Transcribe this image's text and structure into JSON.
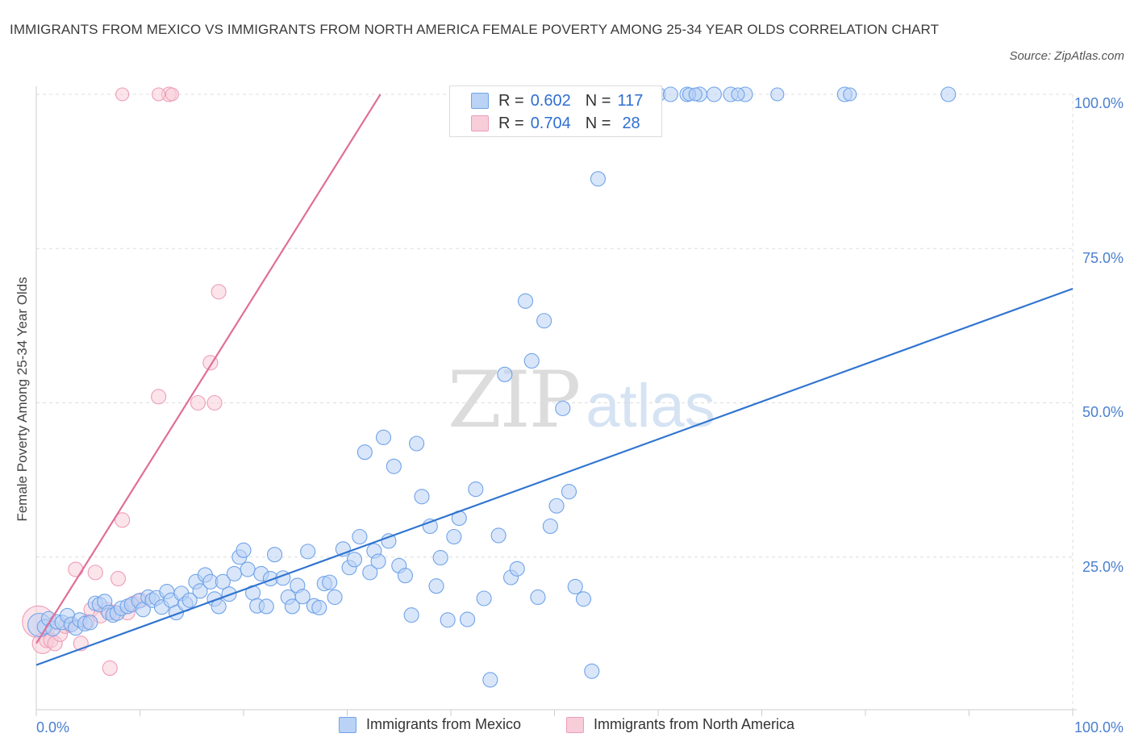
{
  "title": "IMMIGRANTS FROM MEXICO VS IMMIGRANTS FROM NORTH AMERICA FEMALE POVERTY AMONG 25-34 YEAR OLDS CORRELATION CHART",
  "source": "Source: ZipAtlas.com",
  "watermark": {
    "zip": "ZIP",
    "atlas": "atlas"
  },
  "chart_data": {
    "type": "scatter",
    "ylabel": "Female Poverty Among 25-34 Year Olds",
    "xlim": [
      0,
      100
    ],
    "ylim": [
      0,
      100
    ],
    "x_tick_labels": [
      "0.0%",
      "100.0%"
    ],
    "y_tick_labels": [
      "25.0%",
      "50.0%",
      "75.0%",
      "100.0%"
    ],
    "y_ticks": [
      25,
      50,
      75,
      100
    ],
    "grid": true,
    "legend_position": "top-center",
    "series": [
      {
        "name": "Immigrants from Mexico",
        "color": "#6fa3e8",
        "fill": "#b9d2f5",
        "line_color": "#2f74d0",
        "R": "0.602",
        "N": "117",
        "trend": {
          "x": [
            0,
            100
          ],
          "y": [
            7.5,
            68.5
          ]
        },
        "x": [
          0.3,
          0.8,
          1.2,
          1.6,
          2.0,
          2.5,
          3.0,
          3.4,
          3.8,
          4.2,
          4.7,
          5.2,
          5.7,
          6.1,
          6.6,
          7.0,
          7.4,
          7.8,
          8.2,
          8.8,
          9.2,
          9.9,
          10.3,
          10.8,
          11.2,
          11.6,
          12.1,
          12.6,
          13.0,
          13.5,
          14.0,
          14.4,
          14.8,
          15.4,
          15.8,
          16.3,
          16.8,
          17.2,
          17.6,
          18.0,
          18.6,
          19.1,
          19.6,
          20.0,
          20.4,
          20.9,
          21.3,
          21.7,
          22.2,
          22.6,
          23.0,
          23.8,
          24.3,
          24.7,
          25.2,
          25.7,
          26.2,
          26.8,
          27.3,
          27.8,
          28.3,
          28.8,
          29.6,
          30.2,
          30.7,
          31.2,
          31.7,
          32.2,
          32.6,
          33.0,
          33.5,
          34.0,
          34.5,
          35.0,
          35.6,
          36.2,
          36.7,
          37.2,
          38.0,
          38.6,
          39.0,
          39.7,
          40.3,
          40.8,
          41.6,
          42.4,
          43.2,
          43.8,
          44.6,
          45.2,
          45.8,
          46.4,
          47.2,
          47.8,
          48.4,
          49.0,
          49.6,
          50.2,
          50.8,
          51.4,
          52.0,
          52.8,
          53.6,
          54.2,
          55.2,
          56.4,
          57.6,
          58.6,
          60.0,
          61.2,
          62.8,
          64.0,
          65.4,
          67.0,
          68.4,
          78.0,
          88.0
        ],
        "y": [
          14.0,
          13.7,
          15.0,
          13.4,
          14.5,
          14.4,
          15.5,
          14.1,
          13.5,
          14.8,
          14.2,
          14.4,
          17.5,
          17.3,
          17.8,
          16.0,
          15.6,
          15.9,
          16.7,
          17.0,
          17.3,
          17.9,
          16.5,
          18.5,
          18.0,
          18.4,
          16.9,
          19.4,
          18.0,
          16.0,
          19.1,
          17.4,
          18.0,
          21.0,
          19.5,
          22.1,
          21.0,
          18.2,
          17.0,
          21.0,
          19.0,
          22.3,
          25.0,
          26.1,
          23.0,
          19.2,
          17.1,
          22.3,
          17.0,
          21.5,
          25.4,
          21.6,
          18.5,
          17.0,
          20.4,
          18.6,
          25.9,
          17.1,
          16.8,
          20.7,
          20.9,
          18.5,
          26.3,
          23.3,
          24.6,
          28.3,
          42.0,
          22.5,
          26.0,
          24.3,
          44.4,
          27.6,
          39.7,
          23.6,
          22.0,
          15.6,
          43.4,
          34.8,
          30.0,
          20.3,
          24.9,
          14.8,
          28.3,
          31.3,
          14.9,
          36.0,
          18.3,
          5.1,
          28.5,
          54.6,
          21.7,
          23.1,
          66.5,
          56.8,
          18.5,
          63.3,
          30.0,
          33.3,
          49.1,
          35.6,
          20.2,
          18.2,
          6.5,
          86.3,
          100,
          100,
          100,
          100,
          100,
          100,
          100,
          100,
          100,
          100,
          100,
          100,
          100
        ],
        "z": [
          1.6,
          1,
          1,
          1,
          1,
          1,
          1,
          1,
          1,
          1,
          1,
          1,
          1,
          1,
          1,
          1,
          1,
          1,
          1,
          1,
          1,
          1,
          1,
          1,
          1,
          1,
          1,
          1,
          1,
          1,
          1,
          1,
          1,
          1,
          1,
          1,
          1,
          1,
          1,
          1,
          1,
          1,
          1,
          1,
          1,
          1,
          1,
          1,
          1,
          1,
          1,
          1,
          1,
          1,
          1,
          1,
          1,
          1,
          1,
          1,
          1,
          1,
          1,
          1,
          1,
          1,
          1,
          1,
          1,
          1,
          1,
          1,
          1,
          1,
          1,
          1,
          1,
          1,
          1,
          1,
          1,
          1,
          1,
          1,
          1,
          1,
          1,
          1,
          1,
          1,
          1,
          1,
          1,
          1,
          1,
          1,
          1,
          1,
          1,
          1,
          1,
          1,
          1,
          1,
          1,
          1,
          1,
          1,
          1,
          1,
          1,
          1,
          1,
          1,
          1,
          1,
          1
        ]
      },
      {
        "name": "Immigrants from North America",
        "color": "#ee9db8",
        "fill": "#f7cdd9",
        "line_color": "#e06e98",
        "R": "0.704",
        "N": "28",
        "trend": {
          "x": [
            0,
            33.2
          ],
          "y": [
            11.0,
            100
          ]
        },
        "x": [
          0.2,
          0.6,
          1.0,
          1.4,
          1.8,
          2.3,
          2.8,
          3.3,
          3.8,
          4.3,
          4.9,
          5.3,
          5.7,
          6.2,
          6.8,
          7.1,
          7.5,
          7.9,
          8.3,
          8.8,
          9.4,
          10.1,
          11.8,
          12.8,
          15.6,
          16.8,
          17.2,
          17.6
        ],
        "y": [
          14.5,
          11.0,
          11.5,
          11.5,
          11.0,
          12.5,
          13.8,
          14.0,
          23.0,
          11.0,
          14.5,
          16.5,
          22.5,
          15.5,
          16.5,
          7.0,
          16.0,
          21.5,
          31.0,
          16.0,
          17.5,
          18.0,
          51.0,
          100,
          50.0,
          56.5,
          50.0,
          68.0
        ],
        "z": [
          2.2,
          1.4,
          1,
          1,
          1,
          1,
          1,
          1,
          1,
          1,
          1,
          1,
          1,
          1,
          1,
          1,
          1,
          1,
          1,
          1,
          1,
          1,
          1,
          1,
          1,
          1,
          1,
          1
        ]
      }
    ],
    "extra_top_points": {
      "pink_x": [
        8.3,
        11.8,
        13.1,
        41.1
      ],
      "blue_x": [
        63.0,
        63.6,
        67.7,
        71.5,
        78.5
      ],
      "y": 100
    }
  },
  "legend": {
    "rows": [
      {
        "r_label": "R =",
        "r_value": "0.602",
        "n_label": "N =",
        "n_value": "117"
      },
      {
        "r_label": "R =",
        "r_value": "0.704",
        "n_label": "N =",
        "n_value": "28"
      }
    ]
  },
  "bottom_legend": {
    "items": [
      {
        "label": "Immigrants from Mexico"
      },
      {
        "label": "Immigrants from North America"
      }
    ]
  }
}
